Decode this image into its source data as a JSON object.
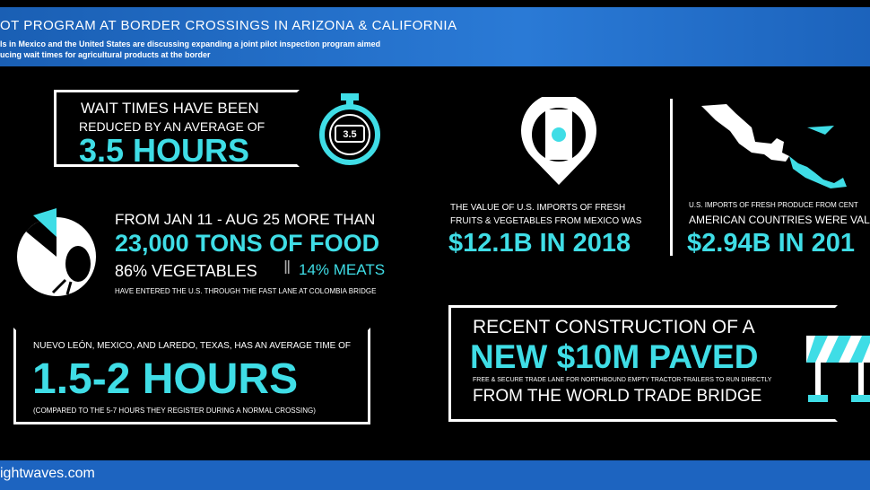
{
  "header": {
    "title": "OT PROGRAM AT BORDER CROSSINGS IN ARIZONA & CALIFORNIA",
    "subtitle": [
      "ls in Mexico and the United States are discussing expanding a joint pilot inspection program aimed",
      "ucing wait times for agricultural products at the border"
    ]
  },
  "wait_times": {
    "line1": "WAIT TIMES HAVE BEEN",
    "line2": "REDUCED BY AN AVERAGE OF",
    "headline": "3.5 HOURS",
    "stopwatch_label": "3.5"
  },
  "food": {
    "line1": "FROM JAN 11 - AUG 25 MORE THAN",
    "headline": "23,000 TONS OF FOOD",
    "vegetables": "86% VEGETABLES",
    "meats": "14% MEATS",
    "note": "HAVE ENTERED THE U.S. THROUGH  THE FAST LANE AT COLOMBIA BRIDGE"
  },
  "average_time": {
    "line1": "NUEVO LEÓN, MEXICO, AND LAREDO, TEXAS, HAS AN AVERAGE TIME OF",
    "headline": "1.5-2 HOURS",
    "note": "(COMPARED TO THE 5-7 HOURS THEY REGISTER DURING A NORMAL CROSSING)"
  },
  "mexico_imports": {
    "line1": "THE VALUE OF U.S. IMPORTS OF FRESH",
    "line2": "FRUITS & VEGETABLES FROM MEXICO WAS",
    "headline": "$12.1B IN 2018"
  },
  "central_america_imports": {
    "line1": "U.S. IMPORTS OF FRESH PRODUCE FROM CENT",
    "line2": "AMERICAN COUNTRIES WERE VALUED",
    "headline": "$2.94B IN 201"
  },
  "construction": {
    "line1": "RECENT CONSTRUCTION OF A",
    "headline": "NEW $10M PAVED",
    "note": "FREE & SECURE TRADE LANE FOR NORTHBOUND EMPTY TRACTOR-TRAILERS TO RUN DIRECTLY",
    "line2": "FROM THE WORLD TRADE BRIDGE"
  },
  "footer": {
    "site": "ightwaves.com"
  }
}
